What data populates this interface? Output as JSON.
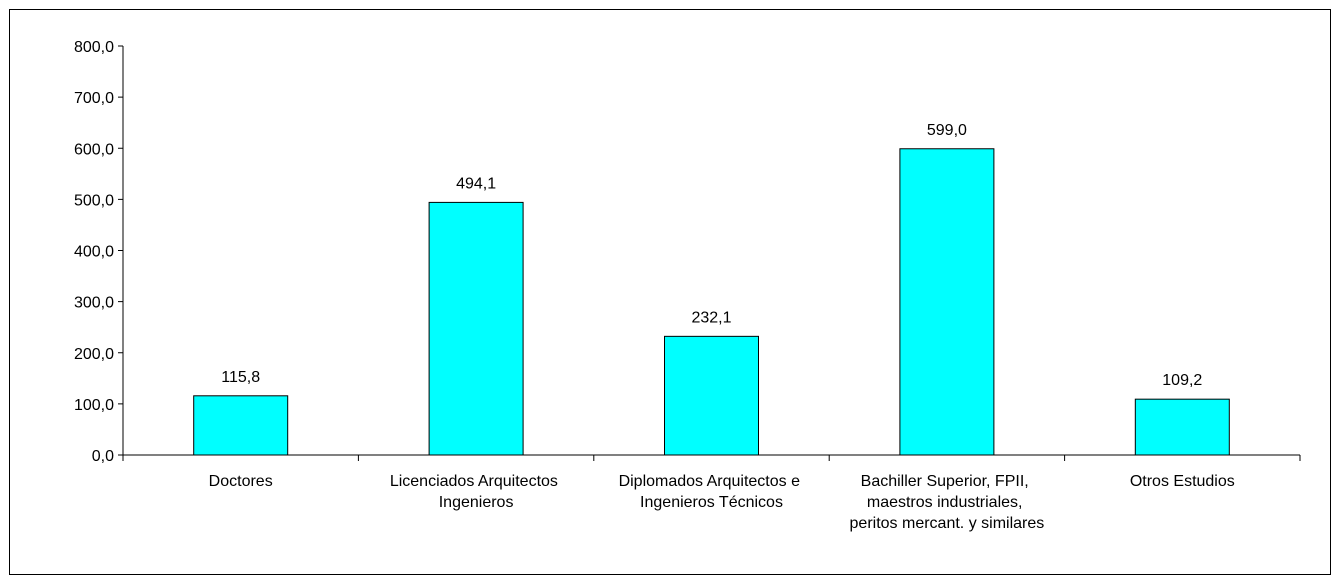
{
  "chart_data": {
    "type": "bar",
    "categories": [
      "Doctores",
      "Licenciados Arquitectos Ingenieros",
      "Diplomados Arquitectos e Ingenieros Técnicos",
      "Bachiller Superior, FPII, maestros industriales, peritos mercant. y similares",
      "Otros Estudios"
    ],
    "values": [
      115.8,
      494.1,
      232.1,
      599.0,
      109.2
    ],
    "value_labels": [
      "115,8",
      "494,1",
      "232,1",
      "599,0",
      "109,2"
    ],
    "color": "#00ffff",
    "ylim": [
      0,
      800
    ],
    "yticks": [
      {
        "value": 0,
        "label": "0,0"
      },
      {
        "value": 100,
        "label": "100,0"
      },
      {
        "value": 200,
        "label": "200,0"
      },
      {
        "value": 300,
        "label": "300,0"
      },
      {
        "value": 400,
        "label": "400,0"
      },
      {
        "value": 500,
        "label": "500,0"
      },
      {
        "value": 600,
        "label": "600,0"
      },
      {
        "value": 700,
        "label": "700,0"
      },
      {
        "value": 800,
        "label": "800,0"
      }
    ]
  }
}
